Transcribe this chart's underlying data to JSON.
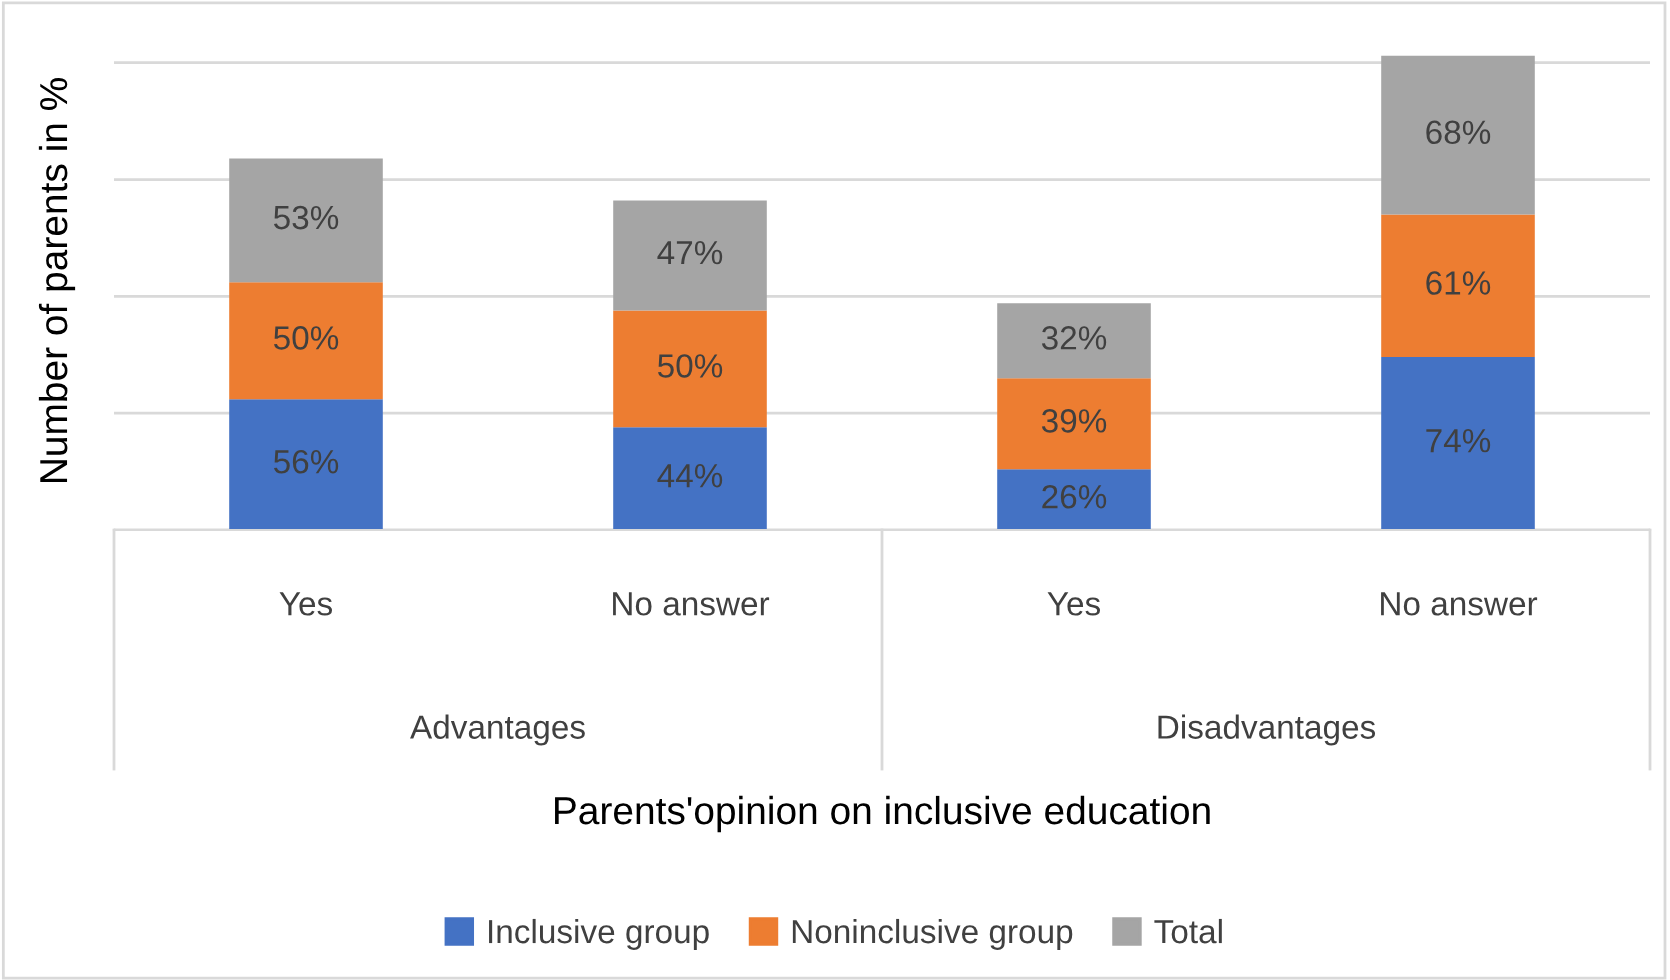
{
  "chart_data": {
    "type": "bar",
    "stacked": true,
    "xlabel": "Parents'opinion on inclusive education",
    "ylabel": "Number of parents in %",
    "categories": [
      "Yes",
      "No answer",
      "Yes",
      "No answer"
    ],
    "annotations": [
      "Advantages",
      "Disadvantages"
    ],
    "series": [
      {
        "name": "Inclusive group",
        "color": "#4472c4",
        "values": [
          56,
          44,
          26,
          74
        ],
        "value_labels": [
          "56%",
          "44%",
          "26%",
          "74%"
        ]
      },
      {
        "name": "Noninclusive group",
        "color": "#ed7d31",
        "values": [
          50,
          50,
          39,
          61
        ],
        "value_labels": [
          "50%",
          "50%",
          "39%",
          "61%"
        ]
      },
      {
        "name": "Total",
        "color": "#a5a5a5",
        "values": [
          53,
          47,
          32,
          68
        ],
        "value_labels": [
          "53%",
          "47%",
          "32%",
          "68%"
        ]
      }
    ],
    "tick_labels": "x",
    "grid": "y",
    "legend": "bottom"
  }
}
